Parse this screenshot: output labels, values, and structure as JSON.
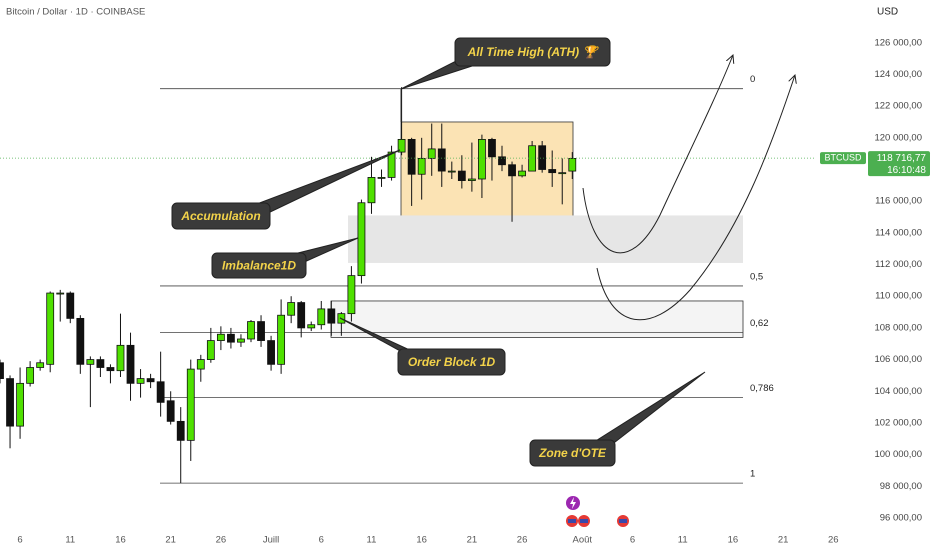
{
  "chart_data": {
    "type": "candlestick",
    "title": "Bitcoin / Dollar · 1D · COINBASE",
    "currency": "USD",
    "symbol": "BTCUSD",
    "countdown": "16:10:48",
    "last_price": {
      "value": 118716.77,
      "label": "118 716,77"
    },
    "up_color": "#4fe000",
    "down_color": "#111111",
    "categories": [
      null,
      null,
      "6",
      null,
      null,
      null,
      null,
      "11",
      null,
      null,
      null,
      null,
      "16",
      null,
      null,
      null,
      null,
      "21",
      null,
      null,
      null,
      null,
      "26",
      null,
      null,
      null,
      null,
      "Juill",
      null,
      null,
      null,
      null,
      "6",
      null,
      null,
      null,
      null,
      "11",
      null,
      null,
      null,
      null,
      "16",
      null,
      null,
      null,
      null,
      "21",
      null,
      null,
      null,
      null,
      "26",
      null,
      null,
      null,
      null,
      null,
      "Août",
      null,
      null,
      null,
      null,
      "6",
      null,
      null,
      null,
      null,
      "11",
      null,
      null,
      null,
      null,
      "16",
      null,
      null,
      null,
      null,
      "21",
      null,
      null,
      null,
      null,
      "26"
    ],
    "open": [
      105800,
      104800,
      101800,
      104500,
      105500,
      105700,
      110200,
      110200,
      108600,
      105700,
      106000,
      105500,
      105300,
      106900,
      104500,
      104800,
      104600,
      103400,
      102100,
      100900,
      105400,
      106000,
      107200,
      107600,
      107100,
      107300,
      108400,
      107200,
      105700,
      108800,
      109600,
      108000,
      108200,
      109200,
      108300,
      108900,
      111300,
      115900,
      117500,
      117500,
      119100,
      119900,
      117700,
      118700,
      119300,
      117900,
      117900,
      117300,
      117400,
      119900,
      118800,
      118300,
      117600,
      117900,
      119500,
      118000,
      117800,
      117900,
      null,
      null,
      null,
      null,
      null,
      null,
      null,
      null,
      null,
      null,
      null,
      null,
      null,
      null,
      null,
      null,
      null,
      null,
      null,
      null,
      null,
      null,
      null,
      null,
      null,
      null
    ],
    "high": [
      106000,
      105000,
      105500,
      105900,
      106000,
      110300,
      110400,
      110300,
      108800,
      106200,
      106200,
      105700,
      108900,
      107700,
      105400,
      105100,
      106500,
      104000,
      103000,
      106000,
      106300,
      108000,
      108100,
      108000,
      107600,
      108500,
      108800,
      107500,
      109800,
      110000,
      109700,
      108400,
      109700,
      109700,
      109000,
      111900,
      116100,
      118800,
      118000,
      119500,
      123200,
      120000,
      120000,
      120900,
      120900,
      118500,
      118900,
      119700,
      120200,
      120000,
      119500,
      118500,
      118300,
      119800,
      119800,
      119200,
      118700,
      119100,
      null,
      null,
      null,
      null,
      null,
      null,
      null,
      null,
      null,
      null,
      null,
      null,
      null,
      null,
      null,
      null,
      null,
      null,
      null,
      null,
      null,
      null,
      null,
      null,
      null,
      null
    ],
    "low": [
      104500,
      100400,
      101000,
      104300,
      105300,
      105200,
      108400,
      108300,
      105100,
      103000,
      104900,
      104500,
      104900,
      103400,
      103600,
      104200,
      102400,
      101900,
      98200,
      99600,
      104600,
      105800,
      106600,
      106700,
      106800,
      107100,
      106800,
      105300,
      105100,
      108300,
      107400,
      107800,
      107900,
      107500,
      107500,
      108400,
      110800,
      115200,
      116900,
      117300,
      118900,
      115700,
      116100,
      117600,
      116900,
      117400,
      116800,
      116600,
      116200,
      117300,
      117900,
      114700,
      117500,
      117900,
      117800,
      116900,
      115800,
      117400,
      null,
      null,
      null,
      null,
      null,
      null,
      null,
      null,
      null,
      null,
      null,
      null,
      null,
      null,
      null,
      null,
      null,
      null,
      null,
      null,
      null,
      null,
      null,
      null,
      null,
      null
    ],
    "close": [
      104800,
      101800,
      104500,
      105500,
      105800,
      110200,
      110200,
      108600,
      105700,
      106000,
      105500,
      105300,
      106900,
      104500,
      104800,
      104600,
      103300,
      102100,
      100900,
      105400,
      106000,
      107200,
      107600,
      107100,
      107300,
      108400,
      107200,
      105700,
      108800,
      109600,
      108000,
      108200,
      109200,
      108300,
      108900,
      111300,
      115900,
      117500,
      117500,
      119100,
      119900,
      117700,
      118700,
      119300,
      117900,
      117900,
      117300,
      117400,
      119900,
      118800,
      118300,
      117600,
      117900,
      119500,
      118000,
      117800,
      117800,
      118700,
      null,
      null,
      null,
      null,
      null,
      null,
      null,
      null,
      null,
      null,
      null,
      null,
      null,
      null,
      null,
      null,
      null,
      null,
      null,
      null,
      null,
      null,
      null,
      null,
      null,
      null
    ],
    "ylim": [
      94800,
      128700
    ],
    "yticks": [
      {
        "value": 96000,
        "label": "96 000,00"
      },
      {
        "value": 98000,
        "label": "98 000,00"
      },
      {
        "value": 100000,
        "label": "100 000,00"
      },
      {
        "value": 102000,
        "label": "102 000,00"
      },
      {
        "value": 104000,
        "label": "104 000,00"
      },
      {
        "value": 106000,
        "label": "106 000,00"
      },
      {
        "value": 108000,
        "label": "108 000,00"
      },
      {
        "value": 110000,
        "label": "110 000,00"
      },
      {
        "value": 112000,
        "label": "112 000,00"
      },
      {
        "value": 114000,
        "label": "114 000,00"
      },
      {
        "value": 116000,
        "label": "116 000,00"
      },
      {
        "value": 118000,
        "label": "118 000,00"
      },
      {
        "value": 120000,
        "label": "120 000,00"
      },
      {
        "value": 122000,
        "label": "122 000,00"
      },
      {
        "value": 124000,
        "label": "124 000,00"
      },
      {
        "value": 126000,
        "label": "126 000,00"
      }
    ],
    "fib_levels": [
      {
        "value": 123100,
        "label": "0"
      },
      {
        "value": 110650,
        "label": "0,5"
      },
      {
        "value": 107700,
        "label": "0,62"
      },
      {
        "value": 103600,
        "label": "0,786"
      },
      {
        "value": 98200,
        "label": "1"
      }
    ],
    "zones": [
      {
        "top": 121000,
        "bottom": 114800
      },
      {
        "top": 115100,
        "bottom": 112100
      },
      {
        "top": 109700,
        "bottom": 107400
      }
    ],
    "annotations": [
      "All Time High (ATH) 🏆",
      "Accumulation",
      "Imbalance1D",
      "Order Block 1D",
      "Zone d'OTE"
    ]
  }
}
